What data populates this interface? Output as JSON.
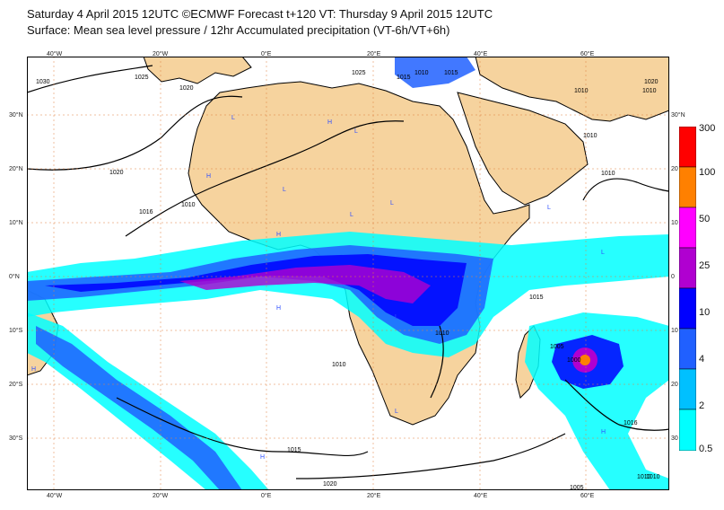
{
  "header": {
    "line1": "Saturday 4 April 2015 12UTC ©ECMWF Forecast t+120 VT: Thursday 9 April 2015 12UTC",
    "line2": "Surface: Mean sea level pressure / 12hr Accumulated precipitation (VT-6h/VT+6h)"
  },
  "axes": {
    "lon_top": [
      "40°W",
      "20°W",
      "0°E",
      "20°E",
      "40°E",
      "60°E"
    ],
    "lon_bottom": [
      "40°W",
      "20°W",
      "0°E",
      "20°E",
      "40°E",
      "60°E"
    ],
    "lat_left": [
      "30°N",
      "20°N",
      "10°N",
      "0°N",
      "10°S",
      "20°S",
      "30°S"
    ],
    "lat_right": [
      "30°N",
      "20",
      "10",
      "0",
      "10",
      "20",
      "30"
    ]
  },
  "legend": {
    "labels": [
      "300",
      "100",
      "50",
      "25",
      "10",
      "4",
      "2",
      "0.5"
    ],
    "colors": [
      "#ff0000",
      "#ff8000",
      "#ff00ff",
      "#b000d0",
      "#0000ff",
      "#2060ff",
      "#00c0ff",
      "#00ffff"
    ]
  },
  "isobars": {
    "labels": [
      "1030",
      "1025",
      "1020",
      "1020",
      "1016",
      "1010",
      "1025",
      "1015",
      "1010",
      "1015",
      "1010",
      "1010",
      "1010",
      "1020",
      "1010",
      "1010",
      "1010",
      "1005",
      "1000",
      "1015",
      "1016",
      "1015",
      "1020",
      "1010",
      "1005",
      "1010"
    ]
  },
  "pressure_centres": {
    "labels": [
      "L",
      "H",
      "L",
      "H",
      "L",
      "H",
      "L",
      "L",
      "H",
      "L",
      "L",
      "H",
      "H",
      "L",
      "L",
      "H"
    ]
  },
  "colors": {
    "land": "#f6d39e",
    "ocean": "#ffffff",
    "coast": "#000000",
    "isobar": "#000000"
  }
}
